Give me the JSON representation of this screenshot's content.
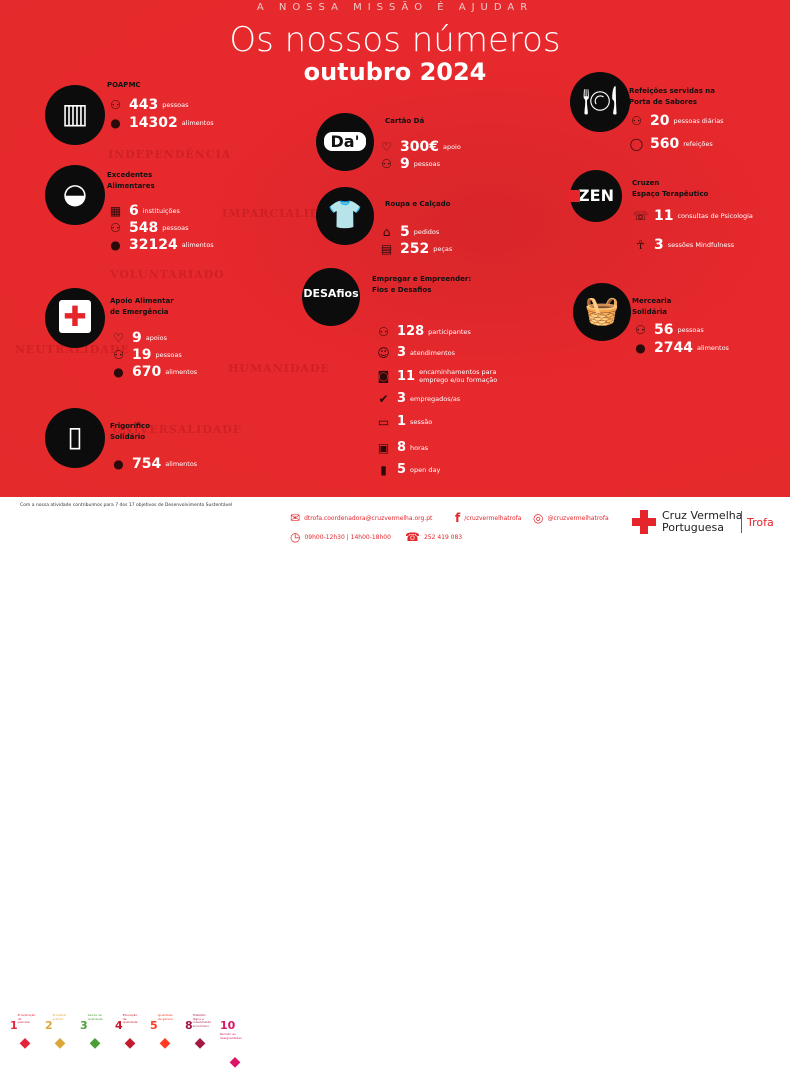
{
  "header": {
    "tagline": "A NOSSA MISSÃO É AJUDAR",
    "title": "Os nossos números",
    "subtitle": "outubro 2024"
  },
  "watermarks": [
    "INDEPENDÊNCIA",
    "IMPARCIALIDADE",
    "VOLUNTARIADO",
    "NEUTRALIDADE",
    "HUMANIDADE",
    "UNIVERSALIDADE"
  ],
  "sections": [
    {
      "title": [
        "POAPMC"
      ],
      "icon": "food-basket-icon",
      "stats": [
        {
          "icon": "people-icon",
          "value": "443",
          "label": "pessoas"
        },
        {
          "icon": "food-icon",
          "value": "14302",
          "label": "alimentos"
        }
      ]
    },
    {
      "title": [
        "Excedentes",
        "Alimentares"
      ],
      "icon": "bowl-icon",
      "stats": [
        {
          "icon": "building-icon",
          "value": "6",
          "label": "instituições"
        },
        {
          "icon": "people-icon",
          "value": "548",
          "label": "pessoas"
        },
        {
          "icon": "food-icon",
          "value": "32124",
          "label": "alimentos"
        }
      ]
    },
    {
      "title": [
        "Apoio Alimentar",
        "de Emergência"
      ],
      "icon": "red-cross-bag-icon",
      "stats": [
        {
          "icon": "hand-heart-icon",
          "value": "9",
          "label": "apoios"
        },
        {
          "icon": "people-icon",
          "value": "19",
          "label": "pessoas"
        },
        {
          "icon": "food-icon",
          "value": "670",
          "label": "alimentos"
        }
      ]
    },
    {
      "title": [
        "Frigorífico",
        "Solidário"
      ],
      "icon": "fridge-icon",
      "stats": [
        {
          "icon": "food-icon",
          "value": "754",
          "label": "alimentos"
        }
      ]
    },
    {
      "title": [
        "Cartão Dá"
      ],
      "icon": "da-card-icon",
      "logo": "Da'",
      "stats": [
        {
          "icon": "hand-heart-icon",
          "value": "300€",
          "label": "apoio"
        },
        {
          "icon": "people-icon",
          "value": "9",
          "label": "pessoas"
        }
      ]
    },
    {
      "title": [
        "Roupa e Calçado"
      ],
      "icon": "clothes-icon",
      "stats": [
        {
          "icon": "hanger-icon",
          "value": "5",
          "label": "pedidos"
        },
        {
          "icon": "clothes-rack-icon",
          "value": "252",
          "label": "peças"
        }
      ]
    },
    {
      "title": [
        "Empregar e Empreender:",
        "Fios e Desafios"
      ],
      "icon": "desafios-logo-icon",
      "logo": "DESAfios",
      "stats": [
        {
          "icon": "people-icon",
          "value": "128",
          "label": "participantes"
        },
        {
          "icon": "meeting-icon",
          "value": "3",
          "label": "atendimentos"
        },
        {
          "icon": "briefcase-icon",
          "value": "11",
          "label": "encaminhamentos para emprego e/ou formação"
        },
        {
          "icon": "check-icon",
          "value": "3",
          "label": "empregados/as"
        },
        {
          "icon": "presenter-icon",
          "value": "1",
          "label": "sessão"
        },
        {
          "icon": "classroom-icon",
          "value": "8",
          "label": "horas"
        },
        {
          "icon": "door-icon",
          "value": "5",
          "label": "open day"
        }
      ]
    },
    {
      "title": [
        "Refeições servidas na",
        "Porta de Sabores"
      ],
      "icon": "plate-cutlery-icon",
      "stats": [
        {
          "icon": "people-icon",
          "value": "20",
          "label": "pessoas diárias"
        },
        {
          "icon": "plate-icon",
          "value": "560",
          "label": "refeições"
        }
      ]
    },
    {
      "title": [
        "Cruzen",
        "Espaço Terapêutico"
      ],
      "icon": "zen-logo-icon",
      "logo": "ZEN",
      "stats": [
        {
          "icon": "talk-icon",
          "value": "11",
          "label": "consultas de Psicologia"
        },
        {
          "icon": "meditation-icon",
          "value": "3",
          "label": "sessões Mindfulness"
        }
      ]
    },
    {
      "title": [
        "Mercearia",
        "Solidária"
      ],
      "icon": "basket-heart-icon",
      "stats": [
        {
          "icon": "people-icon",
          "value": "56",
          "label": "pessoas"
        },
        {
          "icon": "food-icon",
          "value": "2744",
          "label": "alimentos"
        }
      ]
    }
  ],
  "footer": {
    "sdg_intro": "Com a nossa atividade contribuímos para 7 dos 17 objetivos de Desenvolvimento Sustentável",
    "sdgs": [
      {
        "n": "1",
        "t": "Erradicação da pobreza",
        "c": "#e5243b"
      },
      {
        "n": "2",
        "t": "Erradicar a fome",
        "c": "#dda63a"
      },
      {
        "n": "3",
        "t": "Saúde de qualidade",
        "c": "#4c9f38"
      },
      {
        "n": "4",
        "t": "Educação de qualidade",
        "c": "#c5192d"
      },
      {
        "n": "5",
        "t": "Igualdade de género",
        "c": "#ff3a21"
      },
      {
        "n": "8",
        "t": "Trabalho digno e crescimento económico",
        "c": "#a21942"
      },
      {
        "n": "10",
        "t": "Reduzir as desigualdades",
        "c": "#dd1367"
      }
    ],
    "email": "dtrofa.coordenadora@cruzvermelha.org.pt",
    "facebook": "/cruzvermelhatrofa",
    "instagram": "@cruzvermelhatrofa",
    "hours": "09h00-12h30 | 14h00-18h00",
    "phone": "252 419 083",
    "brand": [
      "Cruz Vermelha",
      "Portuguesa"
    ],
    "branch": "Trofa",
    "accent": "#e4262b"
  }
}
